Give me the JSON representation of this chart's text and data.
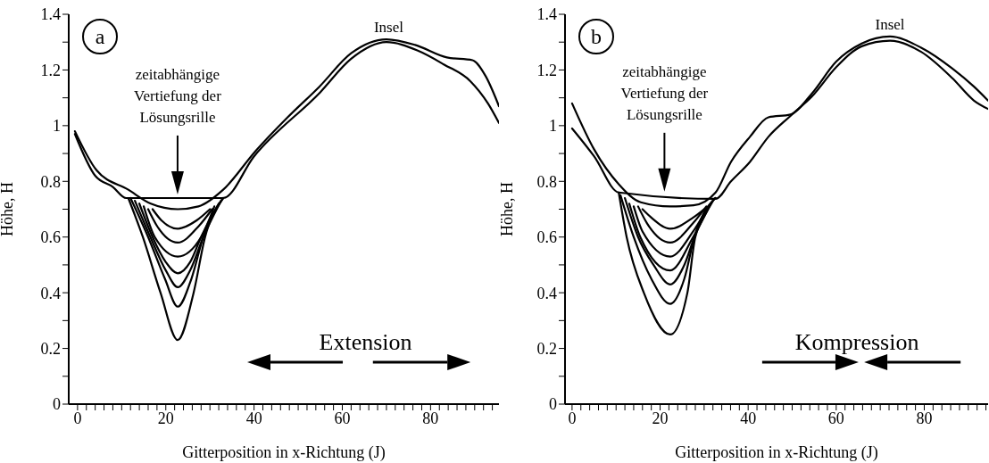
{
  "chart_data": [
    {
      "type": "line",
      "xlabel": "Gitterposition in x-Richtung (J)",
      "ylabel": "Höhe, H",
      "xlim": [
        -2,
        95.5
      ],
      "ylim": [
        0,
        1.4
      ],
      "xticks": [
        0,
        {
          "value": 2,
          "label": null
        },
        {
          "value": 4,
          "label": null
        },
        {
          "value": 6,
          "label": null
        },
        {
          "value": 8,
          "label": null
        },
        {
          "value": 10,
          "label": null
        },
        {
          "value": 12,
          "label": null
        },
        {
          "value": 14,
          "label": null
        },
        {
          "value": 16,
          "label": null
        },
        {
          "value": 18,
          "label": null
        },
        20,
        {
          "value": 22,
          "label": null
        },
        {
          "value": 24,
          "label": null
        },
        {
          "value": 26,
          "label": null
        },
        {
          "value": 28,
          "label": null
        },
        {
          "value": 30,
          "label": null
        },
        {
          "value": 32,
          "label": null
        },
        {
          "value": 34,
          "label": null
        },
        {
          "value": 36,
          "label": null
        },
        {
          "value": 38,
          "label": null
        },
        40,
        {
          "value": 42,
          "label": null
        },
        {
          "value": 44,
          "label": null
        },
        {
          "value": 46,
          "label": null
        },
        {
          "value": 48,
          "label": null
        },
        {
          "value": 50,
          "label": null
        },
        {
          "value": 52,
          "label": null
        },
        {
          "value": 54,
          "label": null
        },
        {
          "value": 56,
          "label": null
        },
        {
          "value": 58,
          "label": null
        },
        60,
        {
          "value": 62,
          "label": null
        },
        {
          "value": 64,
          "label": null
        },
        {
          "value": 66,
          "label": null
        },
        {
          "value": 68,
          "label": null
        },
        {
          "value": 70,
          "label": null
        },
        {
          "value": 72,
          "label": null
        },
        {
          "value": 74,
          "label": null
        },
        {
          "value": 76,
          "label": null
        },
        {
          "value": 78,
          "label": null
        },
        80,
        {
          "value": 82,
          "label": null
        },
        {
          "value": 84,
          "label": null
        },
        {
          "value": 86,
          "label": null
        },
        {
          "value": 88,
          "label": null
        },
        {
          "value": 90,
          "label": null
        },
        {
          "value": 92,
          "label": null
        },
        {
          "value": 94,
          "label": null
        }
      ],
      "yticks": [
        0,
        {
          "value": 0.1,
          "label": null
        },
        0.2,
        {
          "value": 0.3,
          "label": null
        },
        0.4,
        {
          "value": 0.5,
          "label": null
        },
        0.6,
        {
          "value": 0.7,
          "label": null
        },
        0.8,
        {
          "value": 0.9,
          "label": null
        },
        1,
        {
          "value": 1.1,
          "label": null
        },
        1.2,
        {
          "value": 1.3,
          "label": null
        },
        1.4
      ],
      "annotations": [
        "a",
        {
          "text": "Insel",
          "x": 70.5,
          "y": 1.31
        },
        "zeitabhängige\nVertiefung der\nLösungsrille",
        "Extension"
      ],
      "series": [
        {
          "color": "#000000",
          "x": [
            -0.6,
            4.3,
            11.5,
            16.6,
            22.7,
            27.4,
            33,
            40.4,
            47.6,
            54.8,
            62,
            70,
            76.5,
            83.7,
            89.5,
            92.4,
            95.5
          ],
          "values": [
            0.98,
            0.84,
            0.77,
            0.72,
            0.7,
            0.71,
            0.77,
            0.91,
            1.03,
            1.14,
            1.26,
            1.31,
            1.29,
            1.245,
            1.235,
            1.18,
            1.07
          ]
        },
        {
          "color": "#000000",
          "x": [
            -0.6,
            4,
            8,
            11,
            33,
            40,
            55,
            62,
            70,
            77,
            83,
            89,
            93,
            95.5
          ],
          "values": [
            0.97,
            0.82,
            0.78,
            0.74,
            0.74,
            0.89,
            1.12,
            1.24,
            1.3,
            1.27,
            1.22,
            1.16,
            1.08,
            1.01
          ]
        },
        {
          "color": "#000000",
          "x": [
            11.5,
            14.8,
            18.8,
            22.7,
            26.3,
            28.9,
            33
          ],
          "values": [
            0.74,
            0.6,
            0.4,
            0.23,
            0.4,
            0.6,
            0.74
          ]
        },
        {
          "color": "#000000",
          "x": [
            12,
            16,
            19.8,
            22.7,
            25.8,
            28.5,
            33
          ],
          "values": [
            0.74,
            0.6,
            0.45,
            0.35,
            0.45,
            0.6,
            0.74
          ]
        },
        {
          "color": "#000000",
          "x": [
            13,
            16.5,
            20,
            22.7,
            25.5,
            28.5,
            32.5
          ],
          "values": [
            0.73,
            0.6,
            0.48,
            0.42,
            0.48,
            0.6,
            0.73
          ]
        },
        {
          "color": "#000000",
          "x": [
            14,
            17,
            20,
            22.7,
            25.5,
            28,
            32
          ],
          "values": [
            0.72,
            0.6,
            0.51,
            0.47,
            0.51,
            0.6,
            0.72
          ]
        },
        {
          "color": "#000000",
          "x": [
            15,
            17.5,
            22.7,
            28,
            31
          ],
          "values": [
            0.71,
            0.6,
            0.53,
            0.6,
            0.71
          ]
        },
        {
          "color": "#000000",
          "x": [
            16,
            18,
            22.7,
            27.5,
            30.5
          ],
          "values": [
            0.7,
            0.64,
            0.58,
            0.64,
            0.7
          ]
        },
        {
          "color": "#000000",
          "x": [
            17,
            19,
            22.7,
            27,
            30
          ],
          "values": [
            0.7,
            0.66,
            0.63,
            0.66,
            0.7
          ]
        }
      ]
    },
    {
      "type": "line",
      "xlabel": "Gitterposition in x-Richtung (J)",
      "ylabel": "Höhe, H",
      "xlim": [
        -1.6,
        94.5
      ],
      "ylim": [
        0,
        1.4
      ],
      "xticks": [
        0,
        {
          "value": 2,
          "label": null
        },
        {
          "value": 4,
          "label": null
        },
        {
          "value": 6,
          "label": null
        },
        {
          "value": 8,
          "label": null
        },
        {
          "value": 10,
          "label": null
        },
        {
          "value": 12,
          "label": null
        },
        {
          "value": 14,
          "label": null
        },
        {
          "value": 16,
          "label": null
        },
        {
          "value": 18,
          "label": null
        },
        20,
        {
          "value": 22,
          "label": null
        },
        {
          "value": 24,
          "label": null
        },
        {
          "value": 26,
          "label": null
        },
        {
          "value": 28,
          "label": null
        },
        {
          "value": 30,
          "label": null
        },
        {
          "value": 32,
          "label": null
        },
        {
          "value": 34,
          "label": null
        },
        {
          "value": 36,
          "label": null
        },
        {
          "value": 38,
          "label": null
        },
        40,
        {
          "value": 42,
          "label": null
        },
        {
          "value": 44,
          "label": null
        },
        {
          "value": 46,
          "label": null
        },
        {
          "value": 48,
          "label": null
        },
        {
          "value": 50,
          "label": null
        },
        {
          "value": 52,
          "label": null
        },
        {
          "value": 54,
          "label": null
        },
        {
          "value": 56,
          "label": null
        },
        {
          "value": 58,
          "label": null
        },
        60,
        {
          "value": 62,
          "label": null
        },
        {
          "value": 64,
          "label": null
        },
        {
          "value": 66,
          "label": null
        },
        {
          "value": 68,
          "label": null
        },
        {
          "value": 70,
          "label": null
        },
        {
          "value": 72,
          "label": null
        },
        {
          "value": 74,
          "label": null
        },
        {
          "value": 76,
          "label": null
        },
        {
          "value": 78,
          "label": null
        },
        80,
        {
          "value": 82,
          "label": null
        },
        {
          "value": 84,
          "label": null
        },
        {
          "value": 86,
          "label": null
        },
        {
          "value": 88,
          "label": null
        },
        {
          "value": 90,
          "label": null
        },
        {
          "value": 92,
          "label": null
        },
        {
          "value": 94,
          "label": null
        }
      ],
      "yticks": [
        0,
        {
          "value": 0.1,
          "label": null
        },
        0.2,
        {
          "value": 0.3,
          "label": null
        },
        0.4,
        {
          "value": 0.5,
          "label": null
        },
        0.6,
        {
          "value": 0.7,
          "label": null
        },
        0.8,
        {
          "value": 0.9,
          "label": null
        },
        1,
        {
          "value": 1.1,
          "label": null
        },
        1.2,
        {
          "value": 1.3,
          "label": null
        },
        1.4
      ],
      "annotations": [
        "b",
        {
          "text": "Insel",
          "x": 72.2,
          "y": 1.32
        },
        "zeitabhängige\nVertiefung der\nLösungsrille",
        "Kompression"
      ],
      "series": [
        {
          "color": "#000000",
          "x": [
            0,
            5,
            10.6,
            15.6,
            22.3,
            27.6,
            32.6,
            36.1,
            40.4,
            44.6,
            49.6,
            54.5,
            60,
            65.8,
            72.2,
            79.3,
            86.4,
            91.3,
            94.5
          ],
          "values": [
            1.08,
            0.915,
            0.79,
            0.725,
            0.71,
            0.714,
            0.76,
            0.87,
            0.96,
            1.03,
            1.04,
            1.116,
            1.23,
            1.295,
            1.32,
            1.28,
            1.205,
            1.14,
            1.09
          ]
        },
        {
          "color": "#000000",
          "x": [
            0,
            5,
            10.6,
            32.6,
            36.1,
            40.4,
            44.6,
            49.6,
            54.5,
            60,
            65.8,
            72.2,
            79.3,
            86.4,
            91.3,
            94.5
          ],
          "values": [
            0.99,
            0.89,
            0.76,
            0.737,
            0.8,
            0.87,
            0.96,
            1.035,
            1.105,
            1.21,
            1.285,
            1.305,
            1.265,
            1.17,
            1.09,
            1.06
          ]
        },
        {
          "color": "#000000",
          "x": [
            10.6,
            12.4,
            16.3,
            22.3,
            26.2,
            28,
            32.6
          ],
          "values": [
            0.76,
            0.6,
            0.4,
            0.25,
            0.4,
            0.6,
            0.74
          ]
        },
        {
          "color": "#000000",
          "x": [
            11,
            14,
            18,
            22.3,
            25.5,
            27.8,
            32.5
          ],
          "values": [
            0.75,
            0.6,
            0.45,
            0.36,
            0.45,
            0.6,
            0.74
          ]
        },
        {
          "color": "#000000",
          "x": [
            12,
            15,
            18.5,
            22.3,
            25.5,
            27.8,
            32
          ],
          "values": [
            0.74,
            0.6,
            0.5,
            0.43,
            0.5,
            0.6,
            0.73
          ]
        },
        {
          "color": "#000000",
          "x": [
            13,
            15.5,
            22.3,
            27.5,
            31.5
          ],
          "values": [
            0.72,
            0.6,
            0.48,
            0.6,
            0.72
          ]
        },
        {
          "color": "#000000",
          "x": [
            14,
            16,
            22.3,
            27.5,
            31
          ],
          "values": [
            0.71,
            0.62,
            0.53,
            0.62,
            0.71
          ]
        },
        {
          "color": "#000000",
          "x": [
            15,
            17,
            22.3,
            27.5,
            30.5
          ],
          "values": [
            0.71,
            0.65,
            0.58,
            0.65,
            0.71
          ]
        },
        {
          "color": "#000000",
          "x": [
            16,
            18,
            22.3,
            27.5,
            30
          ],
          "values": [
            0.7,
            0.67,
            0.63,
            0.67,
            0.7
          ]
        }
      ]
    }
  ]
}
